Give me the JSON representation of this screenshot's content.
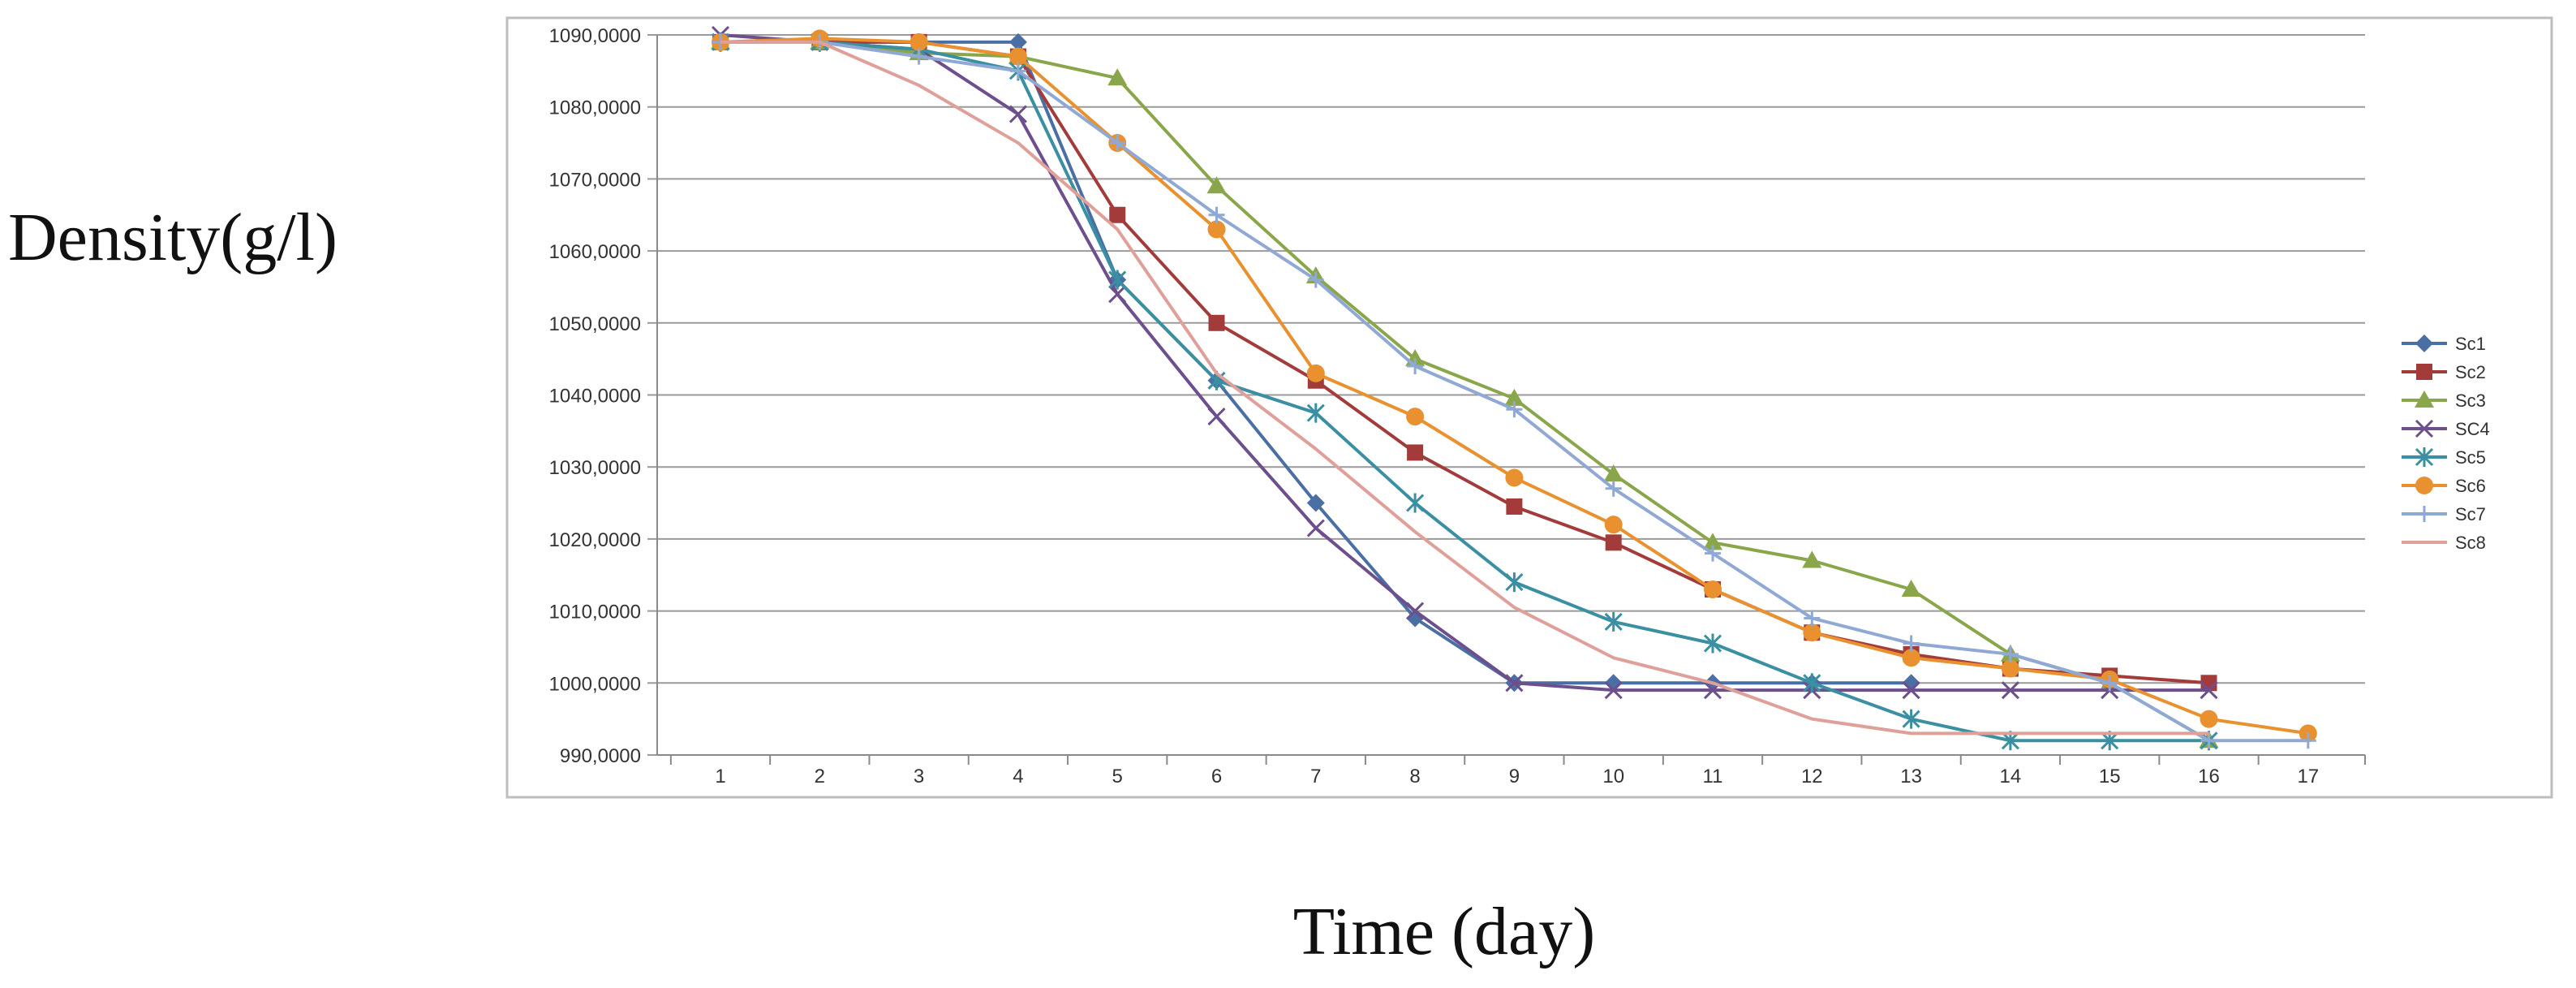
{
  "chart_data": {
    "type": "line",
    "title": "",
    "xlabel": "Time (day)",
    "ylabel": "Density(g/l)",
    "x": [
      1,
      2,
      3,
      4,
      5,
      6,
      7,
      8,
      9,
      10,
      11,
      12,
      13,
      14,
      15,
      16,
      17
    ],
    "xlim": [
      1,
      17
    ],
    "ylim": [
      990,
      1090
    ],
    "grid": true,
    "legend_position": "right",
    "y_tick_labels": [
      "990,0000",
      "1000,0000",
      "1010,0000",
      "1020,0000",
      "1030,0000",
      "1040,0000",
      "1050,0000",
      "1060,0000",
      "1070,0000",
      "1080,0000",
      "1090,0000"
    ],
    "x_tick_labels": [
      "1",
      "2",
      "3",
      "4",
      "5",
      "6",
      "7",
      "8",
      "9",
      "10",
      "11",
      "12",
      "13",
      "14",
      "15",
      "16",
      "17"
    ],
    "series": [
      {
        "name": "Sc1",
        "color": "#4a6fa5",
        "marker": "diamond",
        "values": [
          1089,
          1089,
          1089,
          1089,
          1056,
          1042,
          1025,
          1009,
          1000,
          1000,
          1000,
          1000,
          1000,
          null,
          null,
          null,
          null
        ]
      },
      {
        "name": "Sc2",
        "color": "#a33b3b",
        "marker": "square",
        "values": [
          1089,
          1089,
          1089,
          1087,
          1065,
          1050,
          1042,
          1032,
          1024.5,
          1019.5,
          1013,
          1007,
          1004,
          1002,
          1001,
          1000,
          null
        ]
      },
      {
        "name": "Sc3",
        "color": "#8aa64a",
        "marker": "triangle",
        "values": [
          1089,
          1089,
          1087.5,
          1087,
          1084,
          1069,
          1056.5,
          1045,
          1039.5,
          1029,
          1019.5,
          1017,
          1013,
          1004,
          1000,
          992,
          null
        ]
      },
      {
        "name": "SC4",
        "color": "#6c4f8c",
        "marker": "x",
        "values": [
          1090,
          1089,
          1088,
          1079,
          1054,
          1037,
          1021.5,
          1010,
          1000,
          999,
          999,
          999,
          999,
          999,
          999,
          999,
          null
        ]
      },
      {
        "name": "Sc5",
        "color": "#3a8fa3",
        "marker": "star",
        "values": [
          1089,
          1089,
          1088,
          1085,
          1056,
          1042,
          1037.5,
          1025,
          1014,
          1008.5,
          1005.5,
          1000,
          995,
          992,
          992,
          992,
          null
        ]
      },
      {
        "name": "Sc6",
        "color": "#e8912e",
        "marker": "circle",
        "values": [
          1089,
          1089.5,
          1089,
          1087,
          1075,
          1063,
          1043,
          1037,
          1028.5,
          1022,
          1013,
          1007,
          1003.5,
          1002,
          1000.5,
          995,
          993
        ]
      },
      {
        "name": "Sc7",
        "color": "#8fa9d4",
        "marker": "plus",
        "values": [
          1089,
          1089,
          1087,
          1085,
          1075,
          1065,
          1056,
          1044,
          1038,
          1027,
          1018,
          1009,
          1005.5,
          1004,
          1000,
          992,
          992
        ]
      },
      {
        "name": "Sc8",
        "color": "#e0a09a",
        "marker": "none",
        "values": [
          1089,
          1089,
          1083,
          1075,
          1063,
          1043,
          1032.5,
          1021,
          1010.5,
          1003.5,
          1000,
          995,
          993,
          993,
          993,
          993,
          null
        ]
      }
    ]
  }
}
